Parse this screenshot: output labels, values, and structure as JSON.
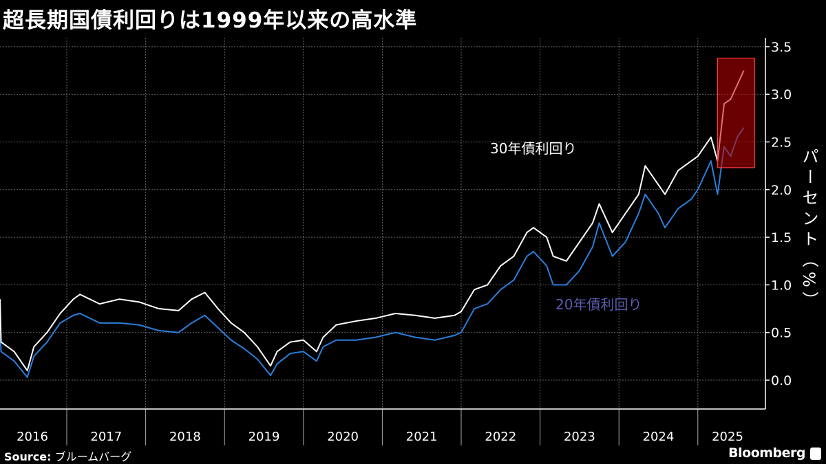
{
  "title": "超長期国債利回りは1999年以来の高水準",
  "source_label": "Source:",
  "source_text": "ブルームバーグ",
  "brand": "Bloomberg",
  "chart_data": {
    "type": "line",
    "title": "超長期国債利回りは1999年以来の高水準",
    "ylabel": "パーセント（%）",
    "xlabel": "",
    "ylim": [
      -0.3,
      3.6
    ],
    "y_ticks": [
      "0.0",
      "0.5",
      "1.0",
      "1.5",
      "2.0",
      "2.5",
      "3.0",
      "3.5"
    ],
    "x_ticks": [
      "2016",
      "2017",
      "2018",
      "2019",
      "2020",
      "2021",
      "2022",
      "2023",
      "2024",
      "2025"
    ],
    "grid": true,
    "y_axis_side": "right",
    "highlight": {
      "from": "2025-04",
      "to": "2025-09",
      "ylim": [
        2.23,
        3.38
      ],
      "color": "#c00000"
    },
    "dates": [
      "2016-02",
      "2016-03",
      "2016-05",
      "2016-07",
      "2016-08",
      "2016-10",
      "2016-12",
      "2017-02",
      "2017-03",
      "2017-06",
      "2017-09",
      "2017-12",
      "2018-03",
      "2018-06",
      "2018-08",
      "2018-10",
      "2018-12",
      "2019-02",
      "2019-04",
      "2019-06",
      "2019-08",
      "2019-09",
      "2019-11",
      "2020-01",
      "2020-03",
      "2020-04",
      "2020-06",
      "2020-09",
      "2020-12",
      "2021-03",
      "2021-06",
      "2021-09",
      "2021-12",
      "2022-01",
      "2022-03",
      "2022-05",
      "2022-07",
      "2022-09",
      "2022-11",
      "2022-12",
      "2023-02",
      "2023-03",
      "2023-05",
      "2023-07",
      "2023-09",
      "2023-10",
      "2023-12",
      "2024-02",
      "2024-04",
      "2024-05",
      "2024-07",
      "2024-08",
      "2024-10",
      "2024-12",
      "2025-01",
      "2025-03",
      "2025-04",
      "2025-05",
      "2025-06",
      "2025-07",
      "2025-08"
    ],
    "series": [
      {
        "name": "30年債利回り",
        "color": "#ffffff",
        "values": [
          0.85,
          0.4,
          0.3,
          0.1,
          0.35,
          0.5,
          0.7,
          0.85,
          0.9,
          0.8,
          0.85,
          0.82,
          0.75,
          0.73,
          0.85,
          0.92,
          0.75,
          0.6,
          0.5,
          0.35,
          0.15,
          0.3,
          0.4,
          0.42,
          0.3,
          0.45,
          0.58,
          0.62,
          0.65,
          0.7,
          0.68,
          0.65,
          0.68,
          0.72,
          0.95,
          1.0,
          1.2,
          1.3,
          1.55,
          1.6,
          1.5,
          1.3,
          1.25,
          1.45,
          1.65,
          1.85,
          1.55,
          1.75,
          1.95,
          2.25,
          2.05,
          1.95,
          2.2,
          2.3,
          2.35,
          2.55,
          2.3,
          2.9,
          2.95,
          3.1,
          3.25
        ]
      },
      {
        "name": "20年債利回り",
        "color": "#2a7fdc",
        "label_color": "#5b5bb0",
        "values": [
          0.55,
          0.3,
          0.2,
          0.03,
          0.25,
          0.4,
          0.6,
          0.68,
          0.7,
          0.6,
          0.6,
          0.58,
          0.52,
          0.5,
          0.6,
          0.68,
          0.55,
          0.42,
          0.33,
          0.22,
          0.05,
          0.17,
          0.28,
          0.3,
          0.2,
          0.35,
          0.42,
          0.42,
          0.45,
          0.5,
          0.45,
          0.42,
          0.47,
          0.5,
          0.75,
          0.8,
          0.95,
          1.05,
          1.3,
          1.35,
          1.2,
          1.0,
          1.0,
          1.15,
          1.4,
          1.65,
          1.3,
          1.45,
          1.75,
          1.95,
          1.75,
          1.6,
          1.8,
          1.9,
          2.0,
          2.3,
          1.95,
          2.45,
          2.35,
          2.55,
          2.65
        ]
      }
    ]
  }
}
